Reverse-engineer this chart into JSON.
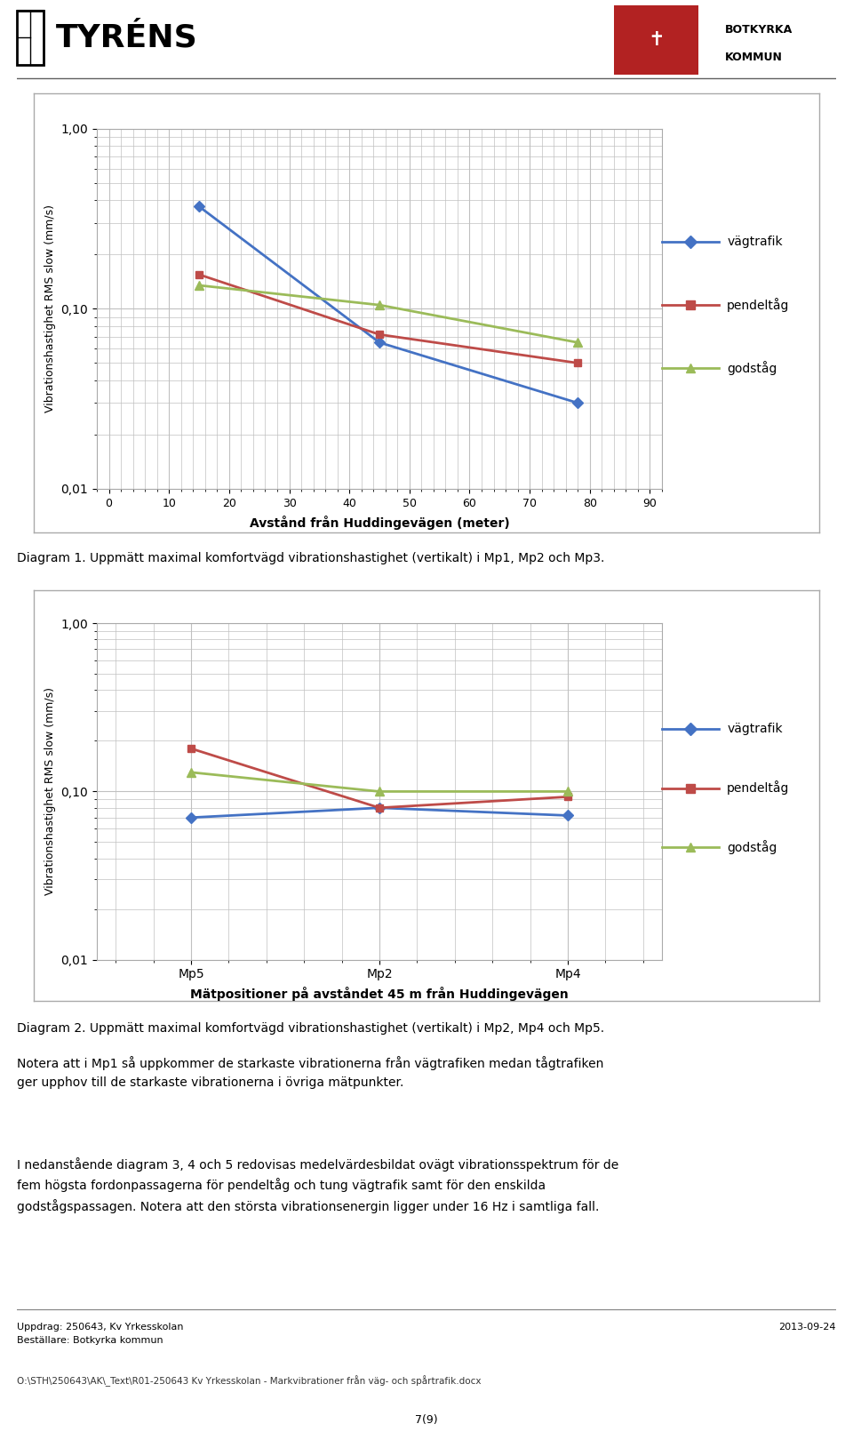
{
  "chart1": {
    "x": [
      15,
      45,
      78
    ],
    "vagtrafik": [
      0.37,
      0.065,
      0.03
    ],
    "pendeltag": [
      0.155,
      0.072,
      0.05
    ],
    "godstag": [
      0.135,
      0.105,
      0.065
    ],
    "xlabel": "Avstånd från Huddingevägen (meter)",
    "ylabel": "Vibrationshastighet RMS slow (mm/s)",
    "xticks": [
      0,
      10,
      20,
      30,
      40,
      50,
      60,
      70,
      80,
      90
    ],
    "ylim": [
      0.01,
      1.0
    ],
    "yticks_labels": [
      "0,01",
      "0,10",
      "1,00"
    ],
    "yticks_vals": [
      0.01,
      0.1,
      1.0
    ]
  },
  "chart2": {
    "x": [
      0,
      1,
      2
    ],
    "xlabels": [
      "Mp5",
      "Mp2",
      "Mp4"
    ],
    "vagtrafik": [
      0.07,
      0.08,
      0.072
    ],
    "pendeltag": [
      0.18,
      0.08,
      0.093
    ],
    "godstag": [
      0.13,
      0.1,
      0.1
    ],
    "xlabel": "Mätpositioner på avståndet 45 m från Huddingevägen",
    "ylabel": "Vibrationshastighet RMS slow (mm/s)",
    "ylim": [
      0.01,
      1.0
    ],
    "yticks_labels": [
      "0,01",
      "0,10",
      "1,00"
    ],
    "yticks_vals": [
      0.01,
      0.1,
      1.0
    ]
  },
  "legend": {
    "vagtrafik_label": "vägtrafik",
    "pendeltag_label": "pendeltåg",
    "godstag_label": "godståg",
    "vagtrafik_color": "#4472C4",
    "pendeltag_color": "#BE4B48",
    "godstag_color": "#9BBB59"
  },
  "caption1": "Diagram 1. Uppmätt maximal komfortvägd vibrationshastighet (vertikalt) i Mp1, Mp2 och Mp3.",
  "caption2": "Diagram 2. Uppmätt maximal komfortvägd vibrationshastighet (vertikalt) i Mp2, Mp4 och Mp5.",
  "text1": "Notera att i Mp1 så uppkommer de starkaste vibrationerna från vägtrafiken medan tågtrafiken\nger upphov till de starkaste vibrationerna i övriga mätpunkter.",
  "text2": "I nedanstående diagram 3, 4 och 5 redovisas medelvärdesbildat ovägt vibrationsspektrum för de\nfem högsta fordonpassagerna för pendeltåg och tung vägtrafik samt för den enskilda\ngodstågspassagen. Notera att den största vibrationsenergin ligger under 16 Hz i samtliga fall.",
  "footer_left": "Uppdrag: 250643, Kv Yrkesskolan\nBeställare: Botkyrka kommun",
  "footer_right": "2013-09-24",
  "footer_bottom": "O:\\STH\\250643\\AK\\_Text\\R01-250643 Kv Yrkesskolan - Markvibrationer från väg- och spårtrafik.docx",
  "page_num": "7(9)",
  "background_color": "#FFFFFF",
  "grid_color": "#C0C0C0",
  "chart_bg": "#FFFFFF",
  "chart_border": "#AAAAAA"
}
